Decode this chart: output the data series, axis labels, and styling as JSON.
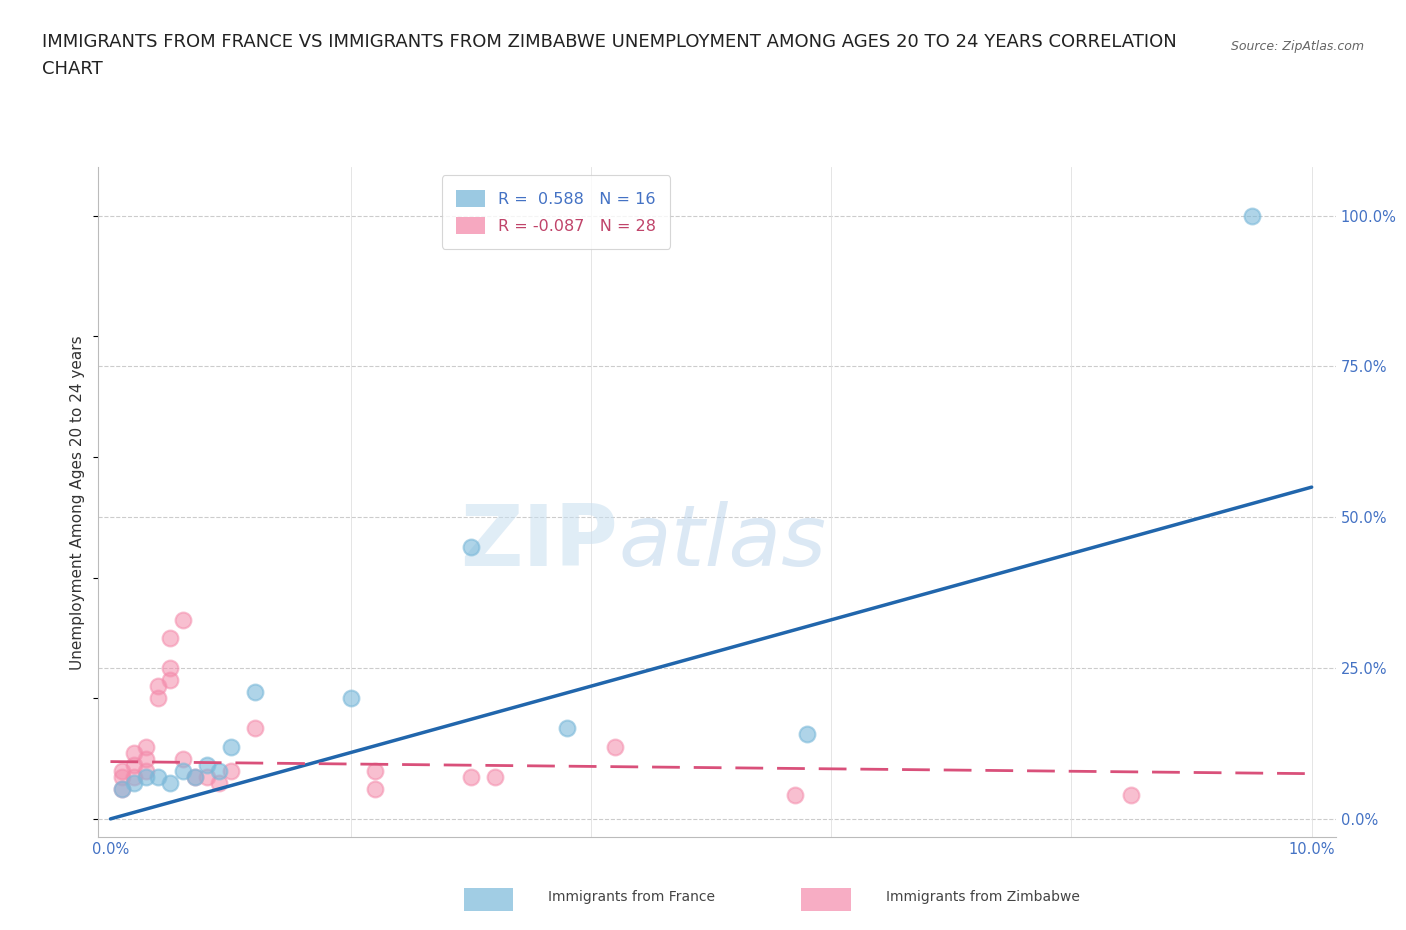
{
  "title_line1": "IMMIGRANTS FROM FRANCE VS IMMIGRANTS FROM ZIMBABWE UNEMPLOYMENT AMONG AGES 20 TO 24 YEARS CORRELATION",
  "title_line2": "CHART",
  "source_text": "Source: ZipAtlas.com",
  "ylabel": "Unemployment Among Ages 20 to 24 years",
  "xlim": [
    -0.001,
    0.102
  ],
  "ylim": [
    -0.03,
    1.08
  ],
  "xticks": [
    0.0,
    0.02,
    0.04,
    0.06,
    0.08,
    0.1
  ],
  "xtick_labels_show": [
    "0.0%",
    "10.0%"
  ],
  "ytick_labels_right": [
    "0.0%",
    "25.0%",
    "50.0%",
    "75.0%",
    "100.0%"
  ],
  "yticks_right": [
    0.0,
    0.25,
    0.5,
    0.75,
    1.0
  ],
  "france_R": 0.588,
  "france_N": 16,
  "zimbabwe_R": -0.087,
  "zimbabwe_N": 28,
  "france_color": "#7ab8d9",
  "zimbabwe_color": "#f48bab",
  "france_trend_color": "#2166ac",
  "zimbabwe_trend_color": "#d9507a",
  "france_scatter_x": [
    0.001,
    0.002,
    0.003,
    0.004,
    0.005,
    0.006,
    0.007,
    0.008,
    0.009,
    0.01,
    0.012,
    0.02,
    0.03,
    0.038,
    0.058,
    0.095
  ],
  "france_scatter_y": [
    0.05,
    0.06,
    0.07,
    0.07,
    0.06,
    0.08,
    0.07,
    0.09,
    0.08,
    0.12,
    0.21,
    0.2,
    0.45,
    0.15,
    0.14,
    1.0
  ],
  "zimbabwe_scatter_x": [
    0.001,
    0.001,
    0.001,
    0.002,
    0.002,
    0.002,
    0.003,
    0.003,
    0.003,
    0.004,
    0.004,
    0.005,
    0.005,
    0.005,
    0.006,
    0.006,
    0.007,
    0.008,
    0.009,
    0.01,
    0.012,
    0.022,
    0.022,
    0.03,
    0.032,
    0.042,
    0.057,
    0.085
  ],
  "zimbabwe_scatter_y": [
    0.05,
    0.07,
    0.08,
    0.07,
    0.09,
    0.11,
    0.08,
    0.1,
    0.12,
    0.2,
    0.22,
    0.23,
    0.25,
    0.3,
    0.1,
    0.33,
    0.07,
    0.07,
    0.06,
    0.08,
    0.15,
    0.05,
    0.08,
    0.07,
    0.07,
    0.12,
    0.04,
    0.04
  ],
  "france_trend_x": [
    0.0,
    0.1
  ],
  "france_trend_y": [
    0.0,
    0.55
  ],
  "zimbabwe_trend_x": [
    0.0,
    0.1
  ],
  "zimbabwe_trend_y": [
    0.095,
    0.075
  ],
  "watermark_zip": "ZIP",
  "watermark_atlas": "atlas",
  "background_color": "#ffffff",
  "grid_color": "#cccccc",
  "title_fontsize": 13,
  "ylabel_fontsize": 11,
  "tick_fontsize": 10.5,
  "legend_fontsize": 11.5
}
